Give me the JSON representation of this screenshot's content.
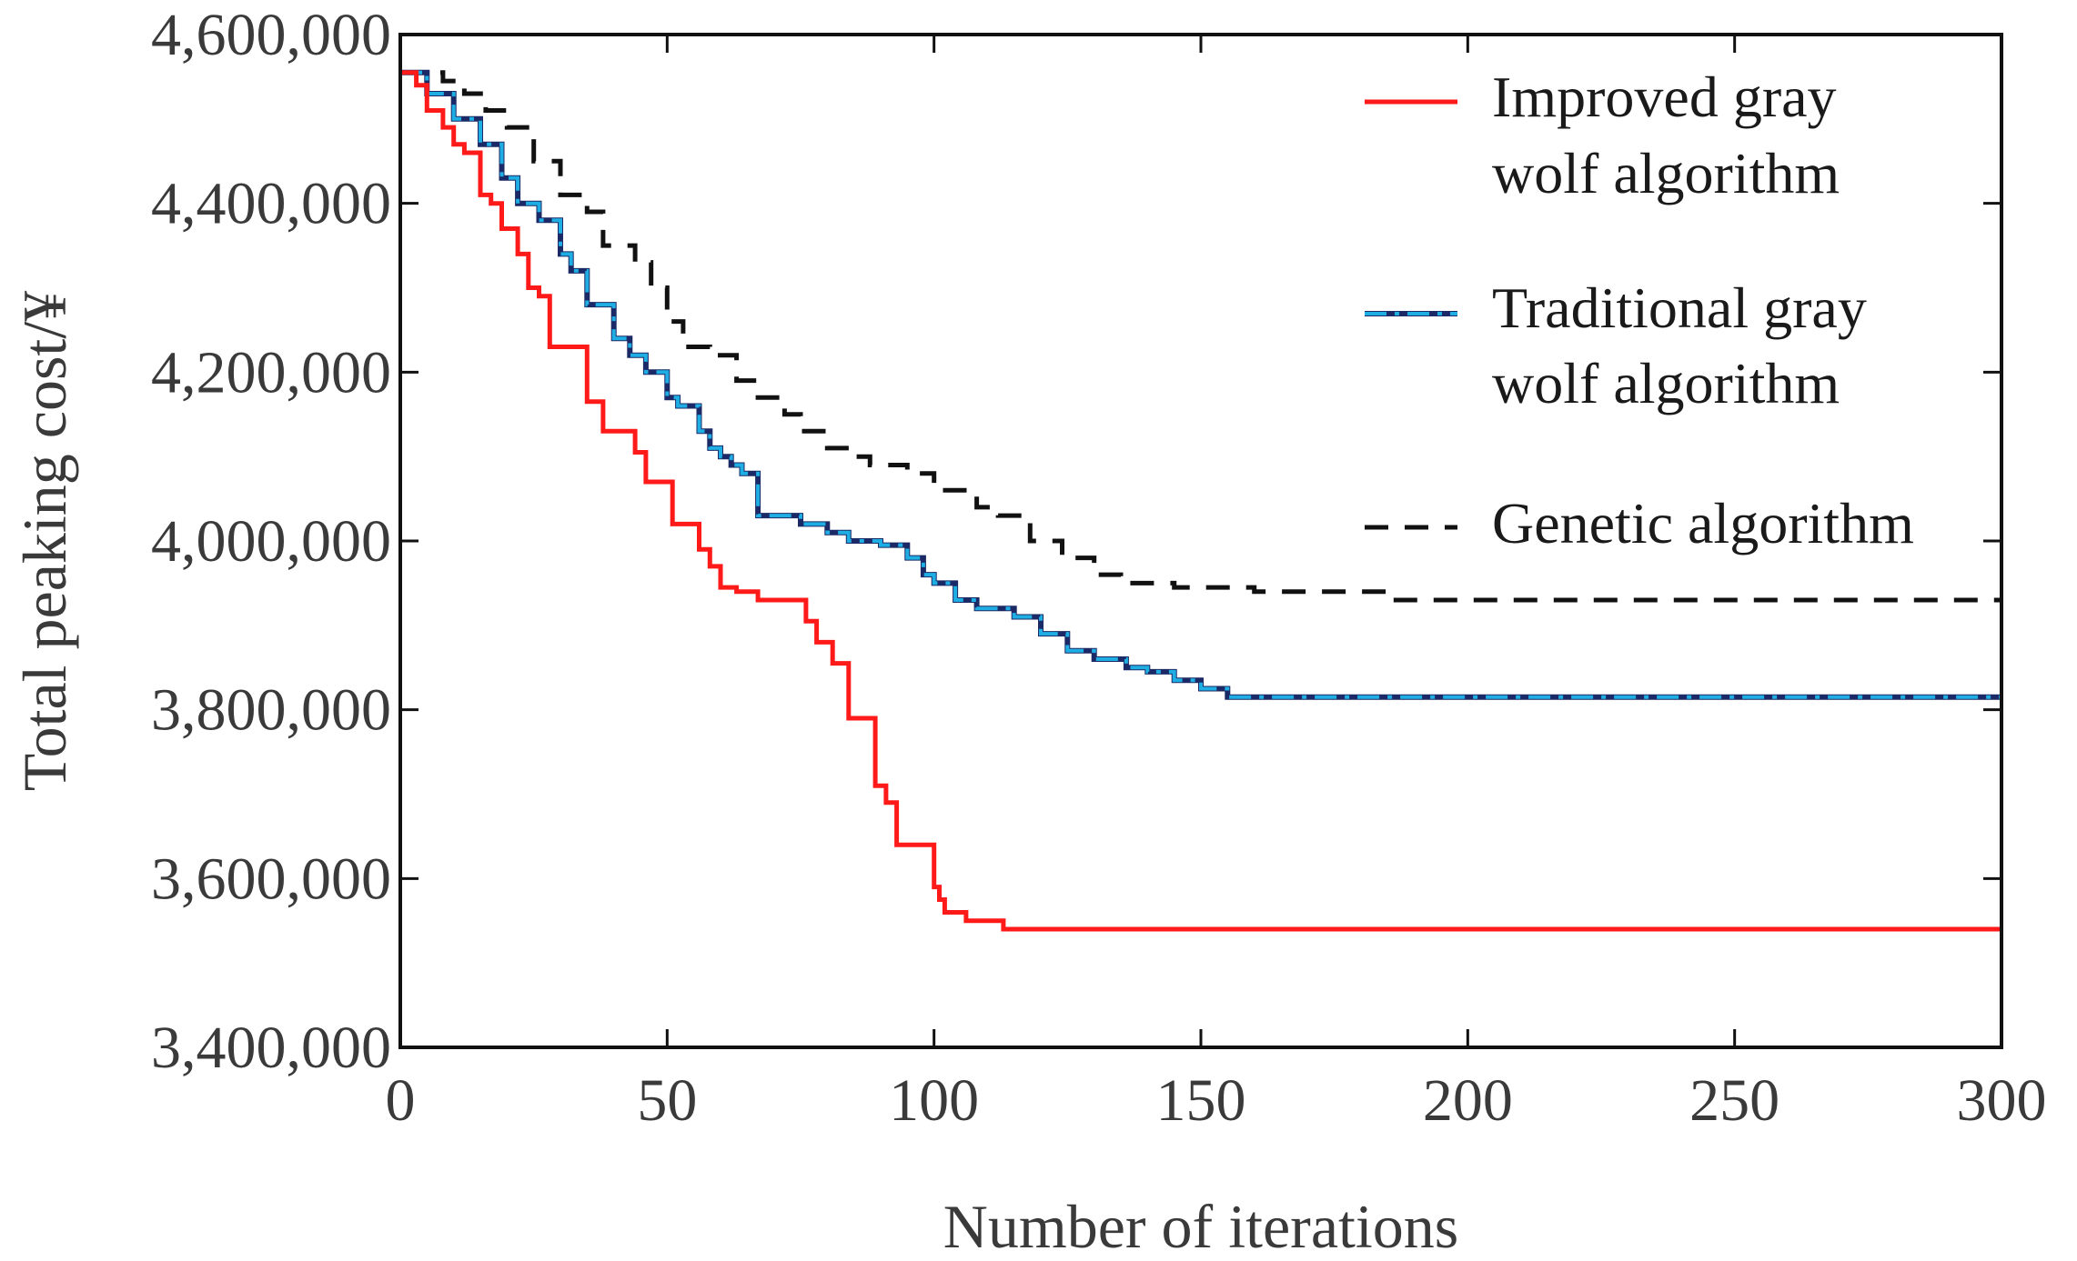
{
  "chart_data": {
    "type": "line",
    "title": "",
    "xlabel": "Number of iterations",
    "ylabel": "Total peaking cost/¥",
    "xlim": [
      0,
      300
    ],
    "ylim": [
      3400000,
      4600000
    ],
    "x_ticks": [
      0,
      50,
      100,
      150,
      200,
      250,
      300
    ],
    "x_tick_labels": [
      "0",
      "50",
      "100",
      "150",
      "200",
      "250",
      "300"
    ],
    "y_ticks": [
      3400000,
      3600000,
      3800000,
      4000000,
      4200000,
      4400000,
      4600000
    ],
    "y_tick_labels": [
      "3,400,000",
      "3,600,000",
      "3,800,000",
      "4,000,000",
      "4,200,000",
      "4,400,000",
      "4,600,000"
    ],
    "grid": false,
    "legend_position": "top-right",
    "series": [
      {
        "name": "Improved gray wolf algorithm",
        "legend_lines": [
          "Improved gray",
          "wolf algorithm"
        ],
        "color": "#ff1a1a",
        "style": "solid",
        "x": [
          0,
          3,
          5,
          8,
          10,
          12,
          15,
          17,
          19,
          22,
          24,
          26,
          28,
          30,
          35,
          38,
          44,
          46,
          48,
          51,
          56,
          58,
          60,
          63,
          67,
          70,
          76,
          78,
          81,
          84,
          89,
          91,
          93,
          100,
          101,
          102,
          106,
          113,
          300
        ],
        "values": [
          4555000,
          4540000,
          4510000,
          4490000,
          4470000,
          4460000,
          4410000,
          4400000,
          4370000,
          4340000,
          4300000,
          4290000,
          4230000,
          4230000,
          4165000,
          4130000,
          4105000,
          4070000,
          4070000,
          4020000,
          3990000,
          3970000,
          3945000,
          3940000,
          3930000,
          3930000,
          3905000,
          3880000,
          3855000,
          3790000,
          3710000,
          3690000,
          3640000,
          3590000,
          3575000,
          3560000,
          3550000,
          3540000,
          3540000
        ]
      },
      {
        "name": "Traditional gray wolf algorithm",
        "legend_lines": [
          "Traditional gray",
          "wolf algorithm"
        ],
        "color": "#1eaee4",
        "style": "dashdot",
        "x": [
          0,
          5,
          10,
          15,
          19,
          22,
          26,
          30,
          32,
          35,
          40,
          43,
          46,
          50,
          52,
          56,
          58,
          60,
          62,
          64,
          67,
          72,
          75,
          80,
          84,
          90,
          95,
          98,
          100,
          104,
          108,
          115,
          120,
          125,
          130,
          136,
          140,
          145,
          150,
          155,
          300
        ],
        "values": [
          4555000,
          4530000,
          4500000,
          4470000,
          4430000,
          4400000,
          4380000,
          4340000,
          4320000,
          4280000,
          4240000,
          4220000,
          4200000,
          4170000,
          4160000,
          4130000,
          4110000,
          4100000,
          4090000,
          4080000,
          4030000,
          4030000,
          4020000,
          4010000,
          4000000,
          3995000,
          3980000,
          3960000,
          3950000,
          3930000,
          3920000,
          3910000,
          3890000,
          3870000,
          3860000,
          3850000,
          3845000,
          3835000,
          3825000,
          3815000,
          3815000
        ]
      },
      {
        "name": "Genetic algorithm",
        "legend_lines": [
          "Genetic algorithm"
        ],
        "color": "#111111",
        "style": "dashed",
        "x": [
          0,
          8,
          12,
          16,
          20,
          25,
          30,
          35,
          38,
          44,
          47,
          50,
          53,
          58,
          63,
          67,
          72,
          75,
          80,
          85,
          88,
          95,
          100,
          108,
          112,
          118,
          124,
          130,
          135,
          145,
          160,
          185,
          300
        ],
        "values": [
          4555000,
          4545000,
          4530000,
          4510000,
          4490000,
          4450000,
          4410000,
          4390000,
          4350000,
          4330000,
          4300000,
          4260000,
          4230000,
          4220000,
          4190000,
          4170000,
          4150000,
          4130000,
          4110000,
          4100000,
          4090000,
          4080000,
          4060000,
          4040000,
          4030000,
          4000000,
          3980000,
          3960000,
          3950000,
          3945000,
          3940000,
          3930000,
          3930000
        ]
      }
    ]
  }
}
